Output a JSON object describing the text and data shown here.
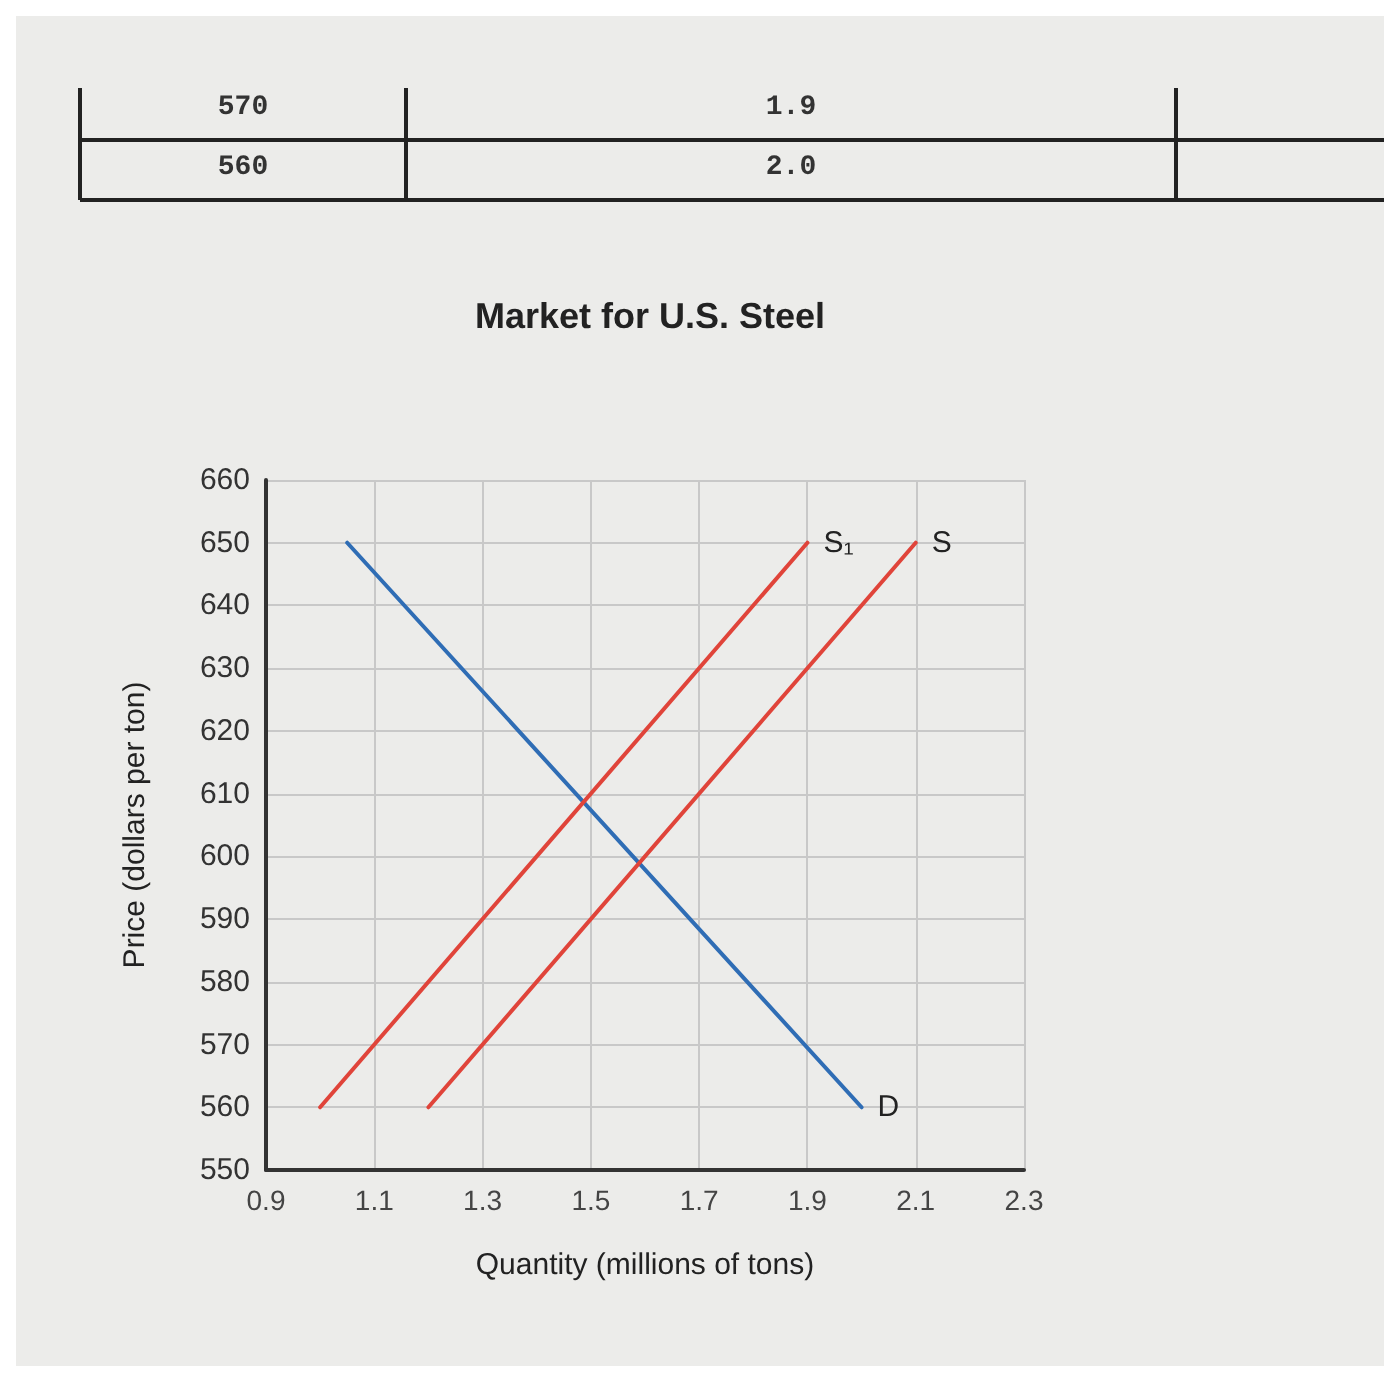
{
  "chart_data": {
    "type": "line",
    "title": "Market for U.S. Steel",
    "xlabel": "Quantity (millions of tons)",
    "ylabel": "Price (dollars per ton)",
    "annotations": [
      "570",
      "1.9",
      "560",
      "2.0"
    ],
    "series": [
      {
        "name": "D",
        "color": "#2f6db5",
        "x": [
          1.05,
          2.0
        ],
        "values": [
          650,
          560
        ]
      },
      {
        "name": "S₁",
        "color": "#e0443a",
        "x": [
          1.0,
          1.9
        ],
        "values": [
          560,
          650
        ]
      },
      {
        "name": "S",
        "color": "#e0443a",
        "x": [
          1.2,
          2.1
        ],
        "values": [
          560,
          650
        ]
      }
    ],
    "xlim": [
      0.9,
      2.3
    ],
    "xticks": [
      0.9,
      1.1,
      1.3,
      1.5,
      1.7,
      1.9,
      2.1,
      2.3
    ],
    "ylim": [
      550,
      660
    ],
    "yticks": [
      550,
      560,
      570,
      580,
      590,
      600,
      610,
      620,
      630,
      640,
      650,
      660
    ],
    "grid": true,
    "legend": false,
    "marker": "none",
    "line_style": "solid"
  }
}
